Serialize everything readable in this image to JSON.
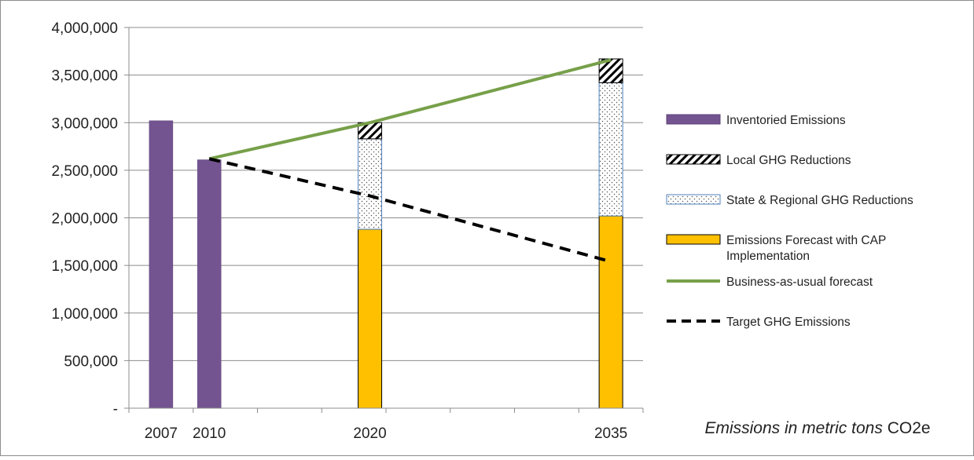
{
  "chart_data": {
    "type": "bar",
    "title": "",
    "xlabel": "",
    "ylabel": "",
    "ylim": [
      0,
      4000000
    ],
    "y_ticks": [
      0,
      500000,
      1000000,
      1500000,
      2000000,
      2500000,
      3000000,
      3500000,
      4000000
    ],
    "y_tick_labels": [
      "-",
      "500,000",
      "1,000,000",
      "1,500,000",
      "2,000,000",
      "2,500,000",
      "3,000,000",
      "3,500,000",
      "4,000,000"
    ],
    "x_domain": [
      2005,
      2037
    ],
    "x_ticks": [
      2007,
      2010,
      2020,
      2035
    ],
    "x_tick_labels": [
      "2007",
      "2010",
      "2020",
      "2035"
    ],
    "grid": "horizontal",
    "legend_position": "right",
    "stacked_bars": true,
    "series": [
      {
        "name": "Inventoried Emissions",
        "kind": "bar",
        "color": "#735491",
        "points": [
          [
            2007,
            3020000
          ],
          [
            2010,
            2610000
          ]
        ]
      },
      {
        "name": "Emissions Forecast with CAP Implementation",
        "kind": "bar",
        "color": "#FFC000",
        "points": [
          [
            2020,
            1880000
          ],
          [
            2035,
            2020000
          ]
        ]
      },
      {
        "name": "State & Regional GHG Reductions",
        "kind": "bar",
        "pattern": "dots",
        "color": "#4F81BD",
        "points": [
          [
            2020,
            950000
          ],
          [
            2035,
            1400000
          ]
        ]
      },
      {
        "name": "Local GHG Reductions",
        "kind": "bar",
        "pattern": "diagonal-hatch",
        "color": "#000000",
        "points": [
          [
            2020,
            170000
          ],
          [
            2035,
            250000
          ]
        ]
      },
      {
        "name": "Business-as-usual forecast",
        "kind": "line",
        "color": "#77A04A",
        "points": [
          [
            2010,
            2620000
          ],
          [
            2020,
            3000000
          ],
          [
            2035,
            3660000
          ]
        ]
      },
      {
        "name": "Target GHG Emissions",
        "kind": "line",
        "dash": "dashed",
        "color": "#000000",
        "points": [
          [
            2010,
            2620000
          ],
          [
            2020,
            2230000
          ],
          [
            2035,
            1540000
          ]
        ]
      }
    ],
    "legend_order": [
      "Inventoried Emissions",
      "Local GHG Reductions",
      "State & Regional GHG Reductions",
      "Emissions Forecast with CAP Implementation",
      "Business-as-usual forecast",
      "Target GHG Emissions"
    ],
    "annotation": {
      "italic_text": "Emissions in metric tons",
      "text": "CO2e"
    }
  }
}
